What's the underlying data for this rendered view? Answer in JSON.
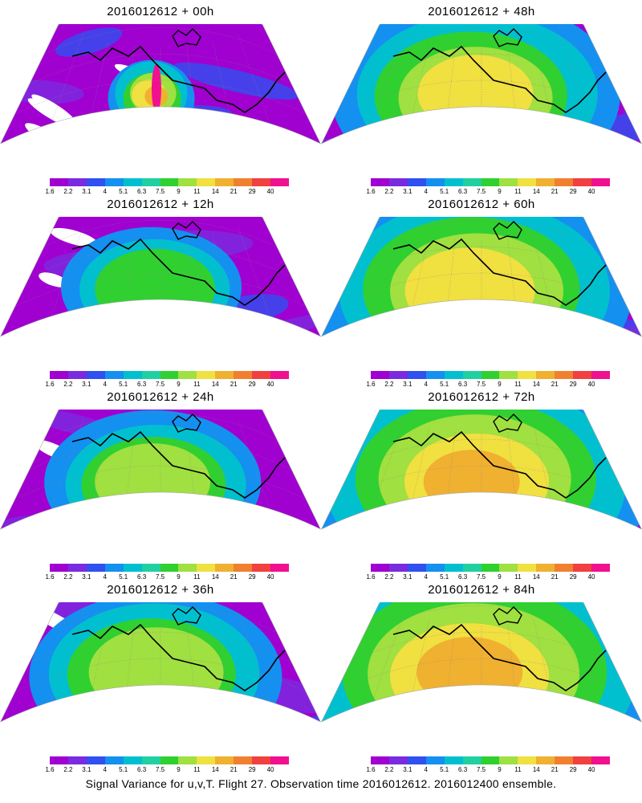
{
  "panels": [
    {
      "title": "2016012612 + 00h",
      "level": 0
    },
    {
      "title": "2016012612 + 12h",
      "level": 1
    },
    {
      "title": "2016012612 + 24h",
      "level": 2
    },
    {
      "title": "2016012612 + 36h",
      "level": 3
    },
    {
      "title": "2016012612 + 48h",
      "level": 4
    },
    {
      "title": "2016012612 + 60h",
      "level": 5
    },
    {
      "title": "2016012612 + 72h",
      "level": 6
    },
    {
      "title": "2016012612 + 84h",
      "level": 7
    }
  ],
  "colorbar": {
    "labels": [
      "1.6",
      "2.2",
      "3.1",
      "4",
      "5.1",
      "6.3",
      "7.5",
      "9",
      "11",
      "14",
      "21",
      "29",
      "40"
    ],
    "colors": [
      "#a000d0",
      "#7a2be0",
      "#3050f0",
      "#1490f0",
      "#00c0d0",
      "#20d0a0",
      "#30d030",
      "#a0e040",
      "#f0e040",
      "#f0b030",
      "#f08030",
      "#f04040",
      "#f01090"
    ]
  },
  "caption": "Signal Variance for u,v,T. Flight 27. Observation time 2016012612. 2016012400 ensemble."
}
